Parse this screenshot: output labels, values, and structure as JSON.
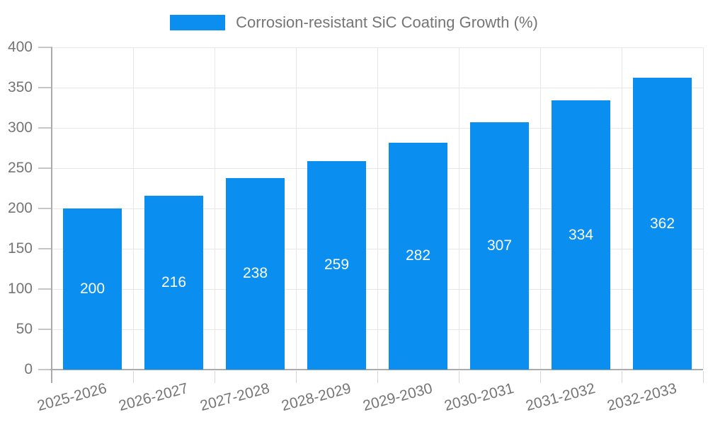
{
  "chart_data": {
    "type": "bar",
    "title": "Corrosion-resistant SiC Coating Growth (%)",
    "categories": [
      "2025-2026",
      "2026-2027",
      "2027-2028",
      "2028-2029",
      "2029-2030",
      "2030-2031",
      "2031-2032",
      "2032-2033"
    ],
    "values": [
      200,
      216,
      238,
      259,
      282,
      307,
      334,
      362
    ],
    "xlabel": "",
    "ylabel": "",
    "ylim": [
      0,
      400
    ],
    "yticks": [
      0,
      50,
      100,
      150,
      200,
      250,
      300,
      350,
      400
    ],
    "grid": true,
    "legend_position": "top-center",
    "colors": {
      "bar": "#0a8ff0",
      "bar_label": "#ffffff",
      "axis_line": "#ababab",
      "grid_line": "#e7e7e7",
      "tick_line": "#c6c6c6",
      "text": "#757575",
      "background": "#ffffff"
    }
  }
}
